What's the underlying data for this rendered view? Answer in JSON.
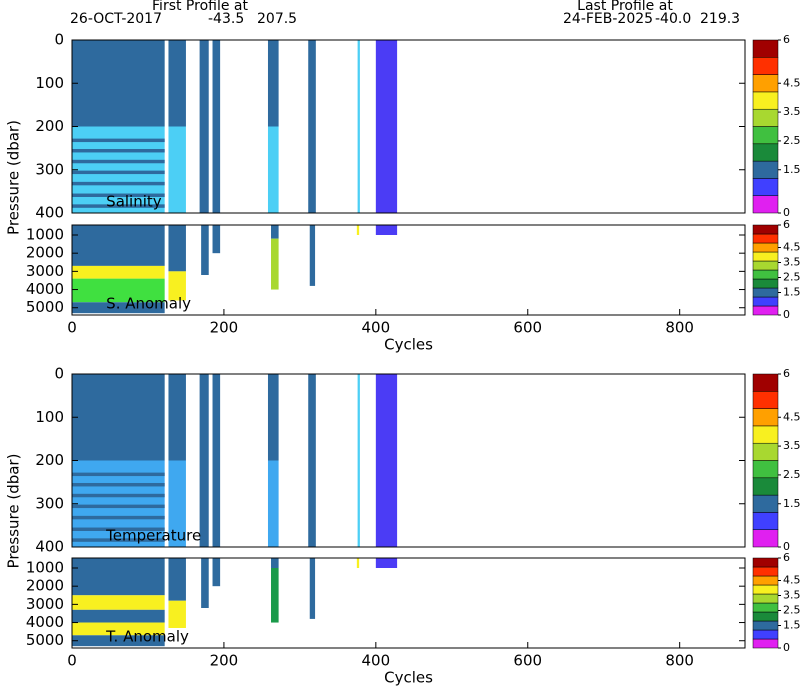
{
  "header": {
    "first": {
      "title": "First Profile at",
      "date": "26-OCT-2017",
      "lat": "-43.5",
      "lon": "207.5"
    },
    "last": {
      "title": "Last Profile at",
      "date": "24-FEB-2025",
      "lat": "-40.0",
      "lon": "219.3"
    }
  },
  "colorbar": {
    "lim": [
      0,
      6
    ],
    "ticks": [
      0,
      1.5,
      2.5,
      3.5,
      4.5,
      6
    ],
    "colors": [
      "#e020f0",
      "#4040ff",
      "#2e6a9e",
      "#1a8a3a",
      "#40c040",
      "#a8d830",
      "#f8f020",
      "#ffa000",
      "#ff3000",
      "#a00000"
    ]
  },
  "chart_data": [
    {
      "type": "heatmap",
      "label": "Salinity",
      "ylabel": "Pressure (dbar)",
      "xlim": [
        0,
        886
      ],
      "ylim": [
        0,
        400
      ],
      "yticks": [
        0,
        100,
        200,
        300,
        400
      ],
      "blocks": [
        {
          "x": [
            0,
            122
          ],
          "y": [
            0,
            200
          ],
          "color": "#2e6a9e"
        },
        {
          "x": [
            0,
            122
          ],
          "y": [
            200,
            400
          ],
          "color": "#4ccff5"
        },
        {
          "x": [
            0,
            122
          ],
          "y": [
            228,
            236
          ],
          "color": "#2e6a9e"
        },
        {
          "x": [
            0,
            122
          ],
          "y": [
            252,
            260
          ],
          "color": "#2e6a9e"
        },
        {
          "x": [
            0,
            122
          ],
          "y": [
            277,
            285
          ],
          "color": "#2e6a9e"
        },
        {
          "x": [
            0,
            122
          ],
          "y": [
            302,
            310
          ],
          "color": "#2e6a9e"
        },
        {
          "x": [
            0,
            122
          ],
          "y": [
            328,
            336
          ],
          "color": "#2e6a9e"
        },
        {
          "x": [
            0,
            122
          ],
          "y": [
            355,
            363
          ],
          "color": "#2e6a9e"
        },
        {
          "x": [
            0,
            122
          ],
          "y": [
            380,
            388
          ],
          "color": "#2e6a9e"
        },
        {
          "x": [
            127,
            150
          ],
          "y": [
            0,
            200
          ],
          "color": "#2e6a9e"
        },
        {
          "x": [
            127,
            150
          ],
          "y": [
            200,
            400
          ],
          "color": "#4ccff5"
        },
        {
          "x": [
            168,
            180
          ],
          "y": [
            0,
            400
          ],
          "color": "#2e6a9e"
        },
        {
          "x": [
            185,
            195
          ],
          "y": [
            0,
            400
          ],
          "color": "#2e6a9e"
        },
        {
          "x": [
            258,
            272
          ],
          "y": [
            0,
            200
          ],
          "color": "#2e6a9e"
        },
        {
          "x": [
            258,
            272
          ],
          "y": [
            200,
            400
          ],
          "color": "#4ccff5"
        },
        {
          "x": [
            311,
            321
          ],
          "y": [
            0,
            400
          ],
          "color": "#2e6a9e"
        },
        {
          "x": [
            376,
            379
          ],
          "y": [
            0,
            400
          ],
          "color": "#4ccff5"
        },
        {
          "x": [
            400,
            428
          ],
          "y": [
            0,
            400
          ],
          "color": "#4b3cf5"
        }
      ]
    },
    {
      "type": "heatmap",
      "label": "S. Anomaly",
      "xlabel": "Cycles",
      "xlim": [
        0,
        886
      ],
      "ylim": [
        450,
        5400
      ],
      "yticks": [
        1000,
        2000,
        3000,
        4000,
        5000
      ],
      "xticks": [
        0,
        200,
        400,
        600,
        800
      ],
      "blocks": [
        {
          "x": [
            0,
            122
          ],
          "y": [
            450,
            2700
          ],
          "color": "#2e6a9e"
        },
        {
          "x": [
            0,
            122
          ],
          "y": [
            2700,
            3400
          ],
          "color": "#f8f020"
        },
        {
          "x": [
            0,
            122
          ],
          "y": [
            3400,
            4700
          ],
          "color": "#40e040"
        },
        {
          "x": [
            0,
            122
          ],
          "y": [
            4700,
            5300
          ],
          "color": "#2e6a9e"
        },
        {
          "x": [
            127,
            150
          ],
          "y": [
            450,
            3000
          ],
          "color": "#2e6a9e"
        },
        {
          "x": [
            127,
            150
          ],
          "y": [
            3000,
            4600
          ],
          "color": "#f8f020"
        },
        {
          "x": [
            170,
            180
          ],
          "y": [
            450,
            3200
          ],
          "color": "#2e6a9e"
        },
        {
          "x": [
            185,
            195
          ],
          "y": [
            450,
            2000
          ],
          "color": "#2e6a9e"
        },
        {
          "x": [
            262,
            272
          ],
          "y": [
            450,
            1200
          ],
          "color": "#2e6a9e"
        },
        {
          "x": [
            262,
            272
          ],
          "y": [
            1200,
            4000
          ],
          "color": "#a8d830"
        },
        {
          "x": [
            313,
            320
          ],
          "y": [
            450,
            3800
          ],
          "color": "#2e6a9e"
        },
        {
          "x": [
            375,
            378
          ],
          "y": [
            450,
            1000
          ],
          "color": "#f8f020"
        },
        {
          "x": [
            400,
            428
          ],
          "y": [
            450,
            1000
          ],
          "color": "#4b3cf5"
        }
      ]
    },
    {
      "type": "heatmap",
      "label": "Temperature",
      "ylabel": "Pressure (dbar)",
      "xlim": [
        0,
        886
      ],
      "ylim": [
        0,
        400
      ],
      "yticks": [
        0,
        100,
        200,
        300,
        400
      ],
      "blocks": [
        {
          "x": [
            0,
            122
          ],
          "y": [
            0,
            200
          ],
          "color": "#2e6a9e"
        },
        {
          "x": [
            0,
            122
          ],
          "y": [
            200,
            400
          ],
          "color": "#3fa8f0"
        },
        {
          "x": [
            0,
            122
          ],
          "y": [
            228,
            236
          ],
          "color": "#2e6a9e"
        },
        {
          "x": [
            0,
            122
          ],
          "y": [
            252,
            260
          ],
          "color": "#2e6a9e"
        },
        {
          "x": [
            0,
            122
          ],
          "y": [
            277,
            285
          ],
          "color": "#2e6a9e"
        },
        {
          "x": [
            0,
            122
          ],
          "y": [
            302,
            310
          ],
          "color": "#2e6a9e"
        },
        {
          "x": [
            0,
            122
          ],
          "y": [
            328,
            336
          ],
          "color": "#2e6a9e"
        },
        {
          "x": [
            0,
            122
          ],
          "y": [
            355,
            363
          ],
          "color": "#2e6a9e"
        },
        {
          "x": [
            0,
            122
          ],
          "y": [
            380,
            388
          ],
          "color": "#2e6a9e"
        },
        {
          "x": [
            127,
            150
          ],
          "y": [
            0,
            200
          ],
          "color": "#2e6a9e"
        },
        {
          "x": [
            127,
            150
          ],
          "y": [
            200,
            400
          ],
          "color": "#3fa8f0"
        },
        {
          "x": [
            168,
            180
          ],
          "y": [
            0,
            400
          ],
          "color": "#2e6a9e"
        },
        {
          "x": [
            185,
            195
          ],
          "y": [
            0,
            400
          ],
          "color": "#2e6a9e"
        },
        {
          "x": [
            258,
            272
          ],
          "y": [
            0,
            200
          ],
          "color": "#2e6a9e"
        },
        {
          "x": [
            258,
            272
          ],
          "y": [
            200,
            400
          ],
          "color": "#3fa8f0"
        },
        {
          "x": [
            311,
            321
          ],
          "y": [
            0,
            400
          ],
          "color": "#2e6a9e"
        },
        {
          "x": [
            376,
            379
          ],
          "y": [
            0,
            400
          ],
          "color": "#4ccff5"
        },
        {
          "x": [
            400,
            428
          ],
          "y": [
            0,
            400
          ],
          "color": "#4b3cf5"
        }
      ]
    },
    {
      "type": "heatmap",
      "label": "T. Anomaly",
      "xlabel": "Cycles",
      "xlim": [
        0,
        886
      ],
      "ylim": [
        450,
        5400
      ],
      "yticks": [
        1000,
        2000,
        3000,
        4000,
        5000
      ],
      "xticks": [
        0,
        200,
        400,
        600,
        800
      ],
      "blocks": [
        {
          "x": [
            0,
            122
          ],
          "y": [
            450,
            2500
          ],
          "color": "#2e6a9e"
        },
        {
          "x": [
            0,
            122
          ],
          "y": [
            2500,
            3300
          ],
          "color": "#f8f020"
        },
        {
          "x": [
            0,
            122
          ],
          "y": [
            3300,
            4000
          ],
          "color": "#2e6a9e"
        },
        {
          "x": [
            0,
            122
          ],
          "y": [
            4000,
            4700
          ],
          "color": "#f8f020"
        },
        {
          "x": [
            0,
            122
          ],
          "y": [
            4700,
            5300
          ],
          "color": "#2e6a9e"
        },
        {
          "x": [
            127,
            150
          ],
          "y": [
            450,
            2800
          ],
          "color": "#2e6a9e"
        },
        {
          "x": [
            127,
            150
          ],
          "y": [
            2800,
            4300
          ],
          "color": "#f8f020"
        },
        {
          "x": [
            170,
            180
          ],
          "y": [
            450,
            3200
          ],
          "color": "#2e6a9e"
        },
        {
          "x": [
            185,
            195
          ],
          "y": [
            450,
            2000
          ],
          "color": "#2e6a9e"
        },
        {
          "x": [
            262,
            272
          ],
          "y": [
            450,
            1000
          ],
          "color": "#2e6a9e"
        },
        {
          "x": [
            262,
            272
          ],
          "y": [
            1000,
            4000
          ],
          "color": "#1a9a4a"
        },
        {
          "x": [
            313,
            320
          ],
          "y": [
            450,
            3800
          ],
          "color": "#2e6a9e"
        },
        {
          "x": [
            375,
            378
          ],
          "y": [
            450,
            1000
          ],
          "color": "#f8f020"
        },
        {
          "x": [
            400,
            428
          ],
          "y": [
            450,
            1000
          ],
          "color": "#4b3cf5"
        }
      ]
    }
  ]
}
